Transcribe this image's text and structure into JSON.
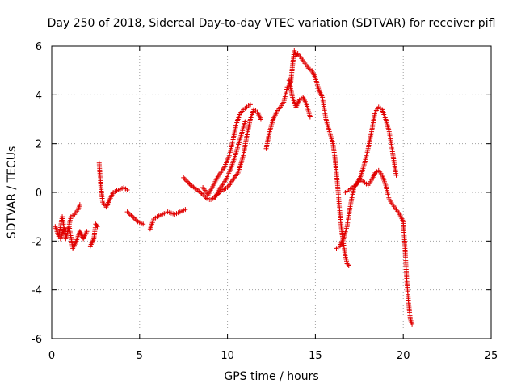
{
  "chart_data": {
    "type": "scatter",
    "title": "Day 250 of 2018, Sidereal Day-to-day VTEC variation (SDTVAR) for receiver pifl",
    "xlabel": "GPS time / hours",
    "ylabel": "SDTVAR / TECUs",
    "xlim": [
      0,
      25
    ],
    "ylim": [
      -6,
      6
    ],
    "xticks": [
      0,
      5,
      10,
      15,
      20,
      25
    ],
    "yticks": [
      -6,
      -4,
      -2,
      0,
      2,
      4,
      6
    ],
    "grid": true,
    "marker": "+",
    "marker_color": "#e00000",
    "series": [
      {
        "name": "pifl",
        "traces": [
          [
            [
              0.2,
              -1.4
            ],
            [
              0.4,
              -1.8
            ],
            [
              0.6,
              -1.0
            ],
            [
              0.8,
              -1.9
            ],
            [
              1.0,
              -1.4
            ],
            [
              1.2,
              -2.3
            ],
            [
              1.4,
              -2.0
            ],
            [
              1.6,
              -1.6
            ],
            [
              1.8,
              -1.9
            ],
            [
              2.0,
              -1.6
            ]
          ],
          [
            [
              0.5,
              -1.9
            ],
            [
              0.7,
              -1.5
            ],
            [
              0.9,
              -1.6
            ],
            [
              1.1,
              -1.0
            ],
            [
              1.3,
              -0.9
            ],
            [
              1.5,
              -0.7
            ],
            [
              1.6,
              -0.5
            ]
          ],
          [
            [
              2.2,
              -2.2
            ],
            [
              2.4,
              -1.9
            ],
            [
              2.5,
              -1.3
            ],
            [
              2.6,
              -1.4
            ]
          ],
          [
            [
              2.7,
              1.2
            ],
            [
              2.8,
              0.2
            ],
            [
              2.9,
              -0.4
            ],
            [
              3.1,
              -0.6
            ],
            [
              3.3,
              -0.3
            ],
            [
              3.5,
              0.0
            ],
            [
              3.8,
              0.1
            ],
            [
              4.1,
              0.2
            ],
            [
              4.3,
              0.1
            ]
          ],
          [
            [
              4.3,
              -0.8
            ],
            [
              4.6,
              -1.0
            ],
            [
              4.9,
              -1.2
            ],
            [
              5.2,
              -1.3
            ]
          ],
          [
            [
              5.6,
              -1.5
            ],
            [
              5.8,
              -1.1
            ],
            [
              6.0,
              -1.0
            ],
            [
              6.3,
              -0.9
            ],
            [
              6.6,
              -0.8
            ],
            [
              7.0,
              -0.9
            ],
            [
              7.3,
              -0.8
            ],
            [
              7.6,
              -0.7
            ]
          ],
          [
            [
              7.5,
              0.6
            ],
            [
              7.9,
              0.3
            ],
            [
              8.3,
              0.1
            ],
            [
              8.6,
              -0.1
            ],
            [
              8.9,
              -0.3
            ],
            [
              9.1,
              -0.3
            ],
            [
              9.4,
              -0.1
            ],
            [
              9.7,
              0.1
            ],
            [
              10.0,
              0.2
            ],
            [
              10.3,
              0.5
            ],
            [
              10.6,
              0.8
            ],
            [
              10.9,
              1.5
            ],
            [
              11.1,
              2.3
            ],
            [
              11.3,
              3.0
            ],
            [
              11.5,
              3.4
            ],
            [
              11.7,
              3.3
            ],
            [
              11.9,
              3.0
            ]
          ],
          [
            [
              8.6,
              0.2
            ],
            [
              8.9,
              -0.1
            ],
            [
              9.2,
              0.3
            ],
            [
              9.5,
              0.7
            ],
            [
              9.8,
              1.0
            ],
            [
              10.1,
              1.5
            ],
            [
              10.3,
              2.1
            ],
            [
              10.5,
              2.8
            ],
            [
              10.7,
              3.2
            ],
            [
              10.9,
              3.4
            ],
            [
              11.1,
              3.5
            ],
            [
              11.3,
              3.6
            ]
          ],
          [
            [
              9.3,
              -0.2
            ],
            [
              9.6,
              0.2
            ],
            [
              9.9,
              0.5
            ],
            [
              10.2,
              1.0
            ],
            [
              10.4,
              1.4
            ],
            [
              10.6,
              1.9
            ],
            [
              10.8,
              2.4
            ],
            [
              11.0,
              2.9
            ]
          ],
          [
            [
              12.2,
              1.8
            ],
            [
              12.4,
              2.5
            ],
            [
              12.6,
              3.0
            ],
            [
              12.8,
              3.3
            ],
            [
              13.0,
              3.5
            ],
            [
              13.2,
              3.7
            ],
            [
              13.4,
              4.3
            ],
            [
              13.6,
              4.5
            ],
            [
              13.7,
              5.2
            ],
            [
              13.8,
              5.8
            ],
            [
              13.9,
              5.6
            ],
            [
              14.0,
              5.7
            ],
            [
              14.2,
              5.5
            ],
            [
              14.4,
              5.3
            ],
            [
              14.6,
              5.1
            ],
            [
              14.8,
              5.0
            ],
            [
              15.0,
              4.7
            ],
            [
              15.2,
              4.2
            ],
            [
              15.4,
              3.9
            ],
            [
              15.6,
              3.0
            ],
            [
              15.8,
              2.5
            ],
            [
              16.0,
              2.0
            ],
            [
              16.1,
              1.5
            ],
            [
              16.2,
              0.8
            ],
            [
              16.3,
              0.0
            ],
            [
              16.4,
              -0.9
            ],
            [
              16.5,
              -1.6
            ],
            [
              16.6,
              -2.1
            ],
            [
              16.7,
              -2.6
            ],
            [
              16.8,
              -2.9
            ],
            [
              16.9,
              -3.0
            ]
          ],
          [
            [
              13.5,
              4.6
            ],
            [
              13.7,
              3.9
            ],
            [
              13.9,
              3.5
            ],
            [
              14.1,
              3.8
            ],
            [
              14.3,
              3.9
            ],
            [
              14.5,
              3.6
            ],
            [
              14.7,
              3.1
            ]
          ],
          [
            [
              16.2,
              -2.3
            ],
            [
              16.4,
              -2.2
            ],
            [
              16.6,
              -1.9
            ],
            [
              16.8,
              -1.4
            ],
            [
              17.0,
              -0.5
            ],
            [
              17.2,
              0.2
            ],
            [
              17.4,
              0.4
            ],
            [
              17.6,
              0.7
            ],
            [
              17.8,
              1.2
            ],
            [
              18.0,
              1.8
            ],
            [
              18.2,
              2.5
            ],
            [
              18.4,
              3.3
            ],
            [
              18.6,
              3.5
            ],
            [
              18.8,
              3.4
            ],
            [
              19.0,
              3.0
            ],
            [
              19.2,
              2.5
            ],
            [
              19.4,
              1.6
            ],
            [
              19.6,
              0.7
            ]
          ],
          [
            [
              17.6,
              0.5
            ],
            [
              17.8,
              0.4
            ],
            [
              18.0,
              0.3
            ],
            [
              18.2,
              0.5
            ],
            [
              18.4,
              0.8
            ],
            [
              18.6,
              0.9
            ],
            [
              18.8,
              0.7
            ],
            [
              19.0,
              0.3
            ],
            [
              19.2,
              -0.3
            ],
            [
              19.4,
              -0.5
            ],
            [
              19.6,
              -0.7
            ],
            [
              19.8,
              -0.9
            ],
            [
              20.0,
              -1.2
            ],
            [
              20.1,
              -2.3
            ],
            [
              20.2,
              -3.6
            ],
            [
              20.3,
              -4.5
            ],
            [
              20.4,
              -5.2
            ],
            [
              20.5,
              -5.4
            ]
          ],
          [
            [
              16.7,
              0.0
            ],
            [
              16.9,
              0.1
            ],
            [
              17.1,
              0.2
            ],
            [
              17.3,
              0.3
            ],
            [
              17.5,
              0.5
            ]
          ]
        ]
      }
    ]
  }
}
